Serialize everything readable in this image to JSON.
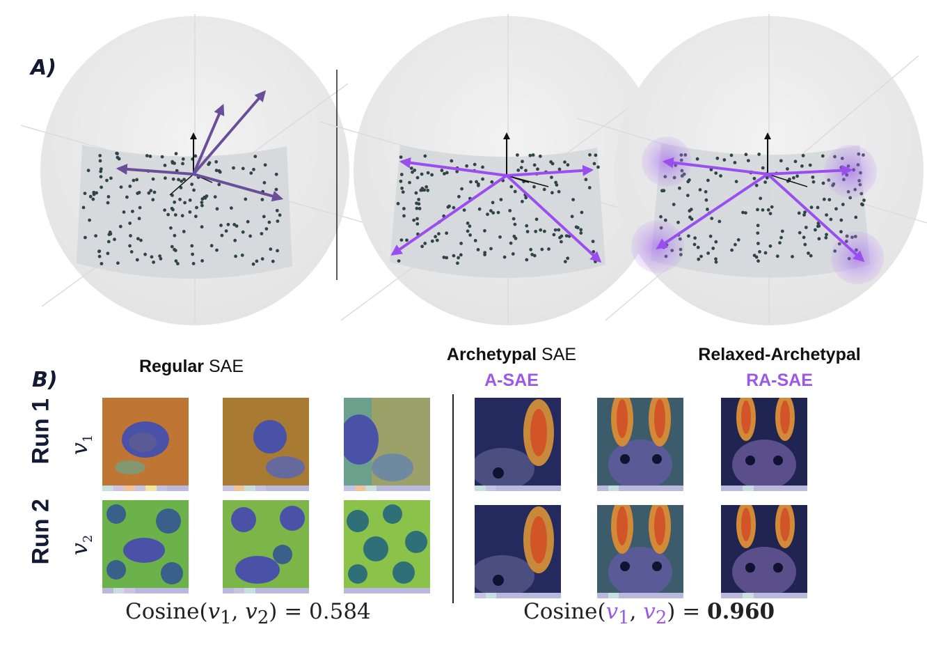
{
  "panel_a": {
    "label": "A)",
    "colors": {
      "regular": "#6a4e98",
      "archetypal": "#9b4ef0",
      "halo": "#c79bf5"
    }
  },
  "panel_b": {
    "label": "B)",
    "titles": {
      "regular": {
        "bold": "Regular",
        "rest": " SAE"
      },
      "archetypal": {
        "bold": "Archetypal",
        "rest": " SAE",
        "abbr": "A-SAE"
      },
      "relaxed": {
        "bold": "Relaxed-Archetypal",
        "abbr": "RA-SAE"
      }
    },
    "rows": [
      {
        "run": "Run 1",
        "vector": "v",
        "sub": "1"
      },
      {
        "run": "Run 2",
        "vector": "v",
        "sub": "2"
      }
    ],
    "cosine_left": {
      "prefix": "Cosine(",
      "v1": "v",
      "s1": "1",
      "sep": ", ",
      "v2": "v",
      "s2": "2",
      "suffix": ") = ",
      "value": "0.584"
    },
    "cosine_right": {
      "prefix": "Cosine(",
      "v1": "v",
      "s1": "1",
      "sep": ", ",
      "v2": "v",
      "s2": "2",
      "suffix": ") = ",
      "value": "0.960"
    }
  }
}
